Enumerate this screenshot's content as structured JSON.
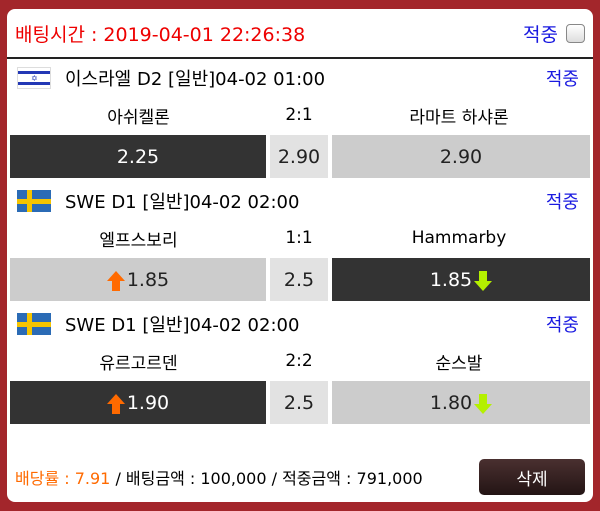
{
  "header": {
    "bet_time_label": "배팅시간 : 2019-04-01 22:26:38",
    "hit_label": "적중"
  },
  "matches": [
    {
      "flag": "israel-flag",
      "league": "이스라엘 D2 [일반]04-02 01:00",
      "status": "적중",
      "home": "아쉬켈론",
      "score": "2:1",
      "away": "라마트 하샤론",
      "home_odds": "2.25",
      "draw_odds": "2.90",
      "away_odds": "2.90",
      "selected": "home"
    },
    {
      "flag": "sweden-flag",
      "league": "SWE D1 [일반]04-02 02:00",
      "status": "적중",
      "home": "엘프스보리",
      "score": "1:1",
      "away": "Hammarby",
      "home_odds": "1.85",
      "draw_odds": "2.5",
      "away_odds": "1.85",
      "selected": "away"
    },
    {
      "flag": "sweden-flag",
      "league": "SWE D1 [일반]04-02 02:00",
      "status": "적중",
      "home": "유르고르덴",
      "score": "2:2",
      "away": "순스발",
      "home_odds": "1.90",
      "draw_odds": "2.5",
      "away_odds": "1.80",
      "selected": "home"
    }
  ],
  "footer": {
    "odds_label": "배당률 : 7.91",
    "bet_amount": " / 배팅금액 : 100,000 / 적중금액 : 791,000",
    "delete_label": "삭제"
  },
  "colors": {
    "accent_red": "#e00000",
    "blue": "#1a1ae0",
    "orange": "#ff6a00",
    "selected": "#333333"
  }
}
